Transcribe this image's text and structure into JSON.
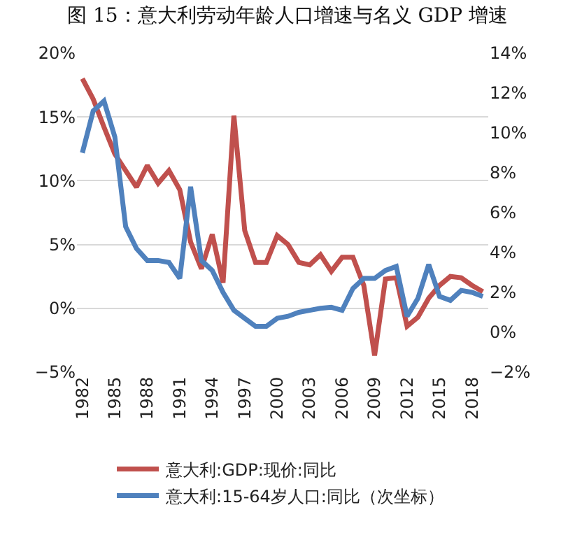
{
  "chart_data": {
    "type": "line",
    "title": "图 15：意大利劳动年龄人口增速与名义 GDP 增速",
    "x": [
      1982,
      1983,
      1984,
      1985,
      1986,
      1987,
      1988,
      1989,
      1990,
      1991,
      1992,
      1993,
      1994,
      1995,
      1996,
      1997,
      1998,
      1999,
      2000,
      2001,
      2002,
      2003,
      2004,
      2005,
      2006,
      2007,
      2008,
      2009,
      2010,
      2011,
      2012,
      2013,
      2014,
      2015,
      2016,
      2017,
      2018,
      2019
    ],
    "series": [
      {
        "name": "意大利:GDP:现价:同比",
        "color": "#c0504d",
        "values": [
          18.0,
          16.4,
          14.2,
          12.1,
          10.8,
          9.5,
          11.2,
          9.8,
          10.8,
          9.3,
          5.2,
          3.1,
          5.8,
          2.0,
          15.1,
          6.1,
          3.6,
          3.6,
          5.7,
          5.0,
          3.6,
          3.4,
          4.2,
          2.9,
          4.0,
          4.0,
          1.8,
          -3.7,
          2.3,
          2.4,
          -1.4,
          -0.7,
          0.8,
          1.8,
          2.5,
          2.4,
          1.8,
          1.3
        ]
      },
      {
        "name": "意大利:15-64岁人口:同比（次坐标）",
        "color": "#4f81bd",
        "axis": "y2",
        "values": [
          9.0,
          11.1,
          11.6,
          9.8,
          5.3,
          4.2,
          3.6,
          3.6,
          3.5,
          2.7,
          7.3,
          3.6,
          3.1,
          2.0,
          1.1,
          0.7,
          0.3,
          0.3,
          0.7,
          0.8,
          1.0,
          1.1,
          1.2,
          1.25,
          1.1,
          2.2,
          2.7,
          2.7,
          3.1,
          3.3,
          0.8,
          1.7,
          3.4,
          1.8,
          1.6,
          2.1,
          2.0,
          1.8
        ]
      }
    ],
    "xlim": [
      1981.5,
      2019.5
    ],
    "xticks": [
      1982,
      1985,
      1988,
      1991,
      1994,
      1997,
      2000,
      2003,
      2006,
      2009,
      2012,
      2015,
      2018
    ],
    "ylim": [
      -5,
      20
    ],
    "yticks": [
      {
        "value": -5,
        "label": "−5%"
      },
      {
        "value": 0,
        "label": "0%"
      },
      {
        "value": 5,
        "label": "5%"
      },
      {
        "value": 10,
        "label": "10%"
      },
      {
        "value": 15,
        "label": "15%"
      },
      {
        "value": 20,
        "label": "20%"
      }
    ],
    "y2lim": [
      -2,
      14
    ],
    "y2ticks": [
      {
        "value": -2,
        "label": "−2%"
      },
      {
        "value": 0,
        "label": "0%"
      },
      {
        "value": 2,
        "label": "2%"
      },
      {
        "value": 4,
        "label": "4%"
      },
      {
        "value": 6,
        "label": "6%"
      },
      {
        "value": 8,
        "label": "8%"
      },
      {
        "value": 10,
        "label": "10%"
      },
      {
        "value": 12,
        "label": "12%"
      },
      {
        "value": 14,
        "label": "14%"
      }
    ],
    "grid": "y",
    "legend": "bottom",
    "marker": "none",
    "line_style": "solid"
  }
}
